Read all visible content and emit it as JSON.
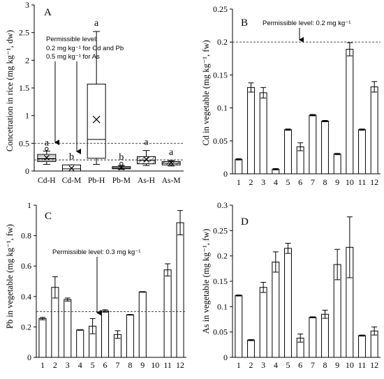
{
  "chart_data": [
    {
      "type": "box",
      "panel_label": "A",
      "ylabel": "Concetration in rice (mg kg⁻¹, dw)",
      "ylim": [
        0,
        3
      ],
      "yticks": [
        "0",
        "0.5",
        "1",
        "1.5",
        "2",
        "2.5",
        "3"
      ],
      "categories": [
        "Cd-H",
        "Cd-M",
        "Pb-H",
        "Pb-M",
        "As-H",
        "As-M"
      ],
      "boxes": [
        {
          "min": 0.12,
          "q1": 0.17,
          "median": 0.22,
          "q3": 0.3,
          "max": 0.36,
          "mean": 0.24,
          "outliers": [
            0.4
          ],
          "letter": "a",
          "fill": "lines"
        },
        {
          "min": 0.0,
          "q1": 0.0,
          "median": 0.04,
          "q3": 0.11,
          "max": 0.11,
          "mean": 0.05,
          "outliers": [],
          "letter": "b",
          "fill": "none"
        },
        {
          "min": 0.12,
          "q1": 0.23,
          "median": 0.57,
          "q3": 1.57,
          "max": 2.52,
          "mean": 0.93,
          "outliers": [],
          "letter": "a",
          "fill": "none"
        },
        {
          "min": 0.03,
          "q1": 0.04,
          "median": 0.06,
          "q3": 0.08,
          "max": 0.1,
          "mean": 0.06,
          "outliers": [
            0.13
          ],
          "letter": "b",
          "fill": "lines"
        },
        {
          "min": 0.1,
          "q1": 0.13,
          "median": 0.19,
          "q3": 0.26,
          "max": 0.37,
          "mean": 0.21,
          "outliers": [],
          "letter": "a",
          "fill": "diag"
        },
        {
          "min": 0.09,
          "q1": 0.11,
          "median": 0.14,
          "q3": 0.17,
          "max": 0.19,
          "mean": 0.15,
          "outliers": [],
          "letter": "a",
          "fill": "diag"
        }
      ],
      "permissible_lines": [
        0.5,
        0.2
      ],
      "annotation": {
        "title": "Permissible level:",
        "line1": "0.2 mg kg⁻¹  for Cd and Pb",
        "line2": "0.5 mg kg⁻¹ for As"
      }
    },
    {
      "type": "bar",
      "panel_label": "B",
      "ylabel": "Cd in vegetable (mg kg⁻¹, fw)",
      "ylim": [
        0,
        0.25
      ],
      "yticks": [
        "0",
        "0.05",
        "0.1",
        "0.15",
        "0.2",
        "0.25"
      ],
      "categories": [
        "1",
        "2",
        "3",
        "4",
        "5",
        "6",
        "7",
        "8",
        "9",
        "10",
        "11",
        "12"
      ],
      "values": [
        0.022,
        0.131,
        0.123,
        0.007,
        0.067,
        0.041,
        0.089,
        0.08,
        0.03,
        0.189,
        0.067,
        0.132
      ],
      "errors": [
        0.001,
        0.007,
        0.008,
        0.001,
        0.001,
        0.006,
        0.001,
        0.001,
        0.001,
        0.01,
        0.001,
        0.008
      ],
      "permissible_line": 0.2,
      "annotation": "Permissible level: 0.2 mg kg⁻¹"
    },
    {
      "type": "bar",
      "panel_label": "C",
      "ylabel": "Pb in vegetable (mg kg⁻¹, fw)",
      "ylim": [
        0,
        1
      ],
      "yticks": [
        "0",
        "0.2",
        "0.4",
        "0.6",
        "0.8",
        "1"
      ],
      "categories": [
        "1",
        "2",
        "3",
        "4",
        "5",
        "6",
        "7",
        "8",
        "9",
        "10",
        "11",
        "12"
      ],
      "values": [
        0.255,
        0.46,
        0.38,
        0.18,
        0.205,
        0.305,
        0.15,
        0.28,
        0.43,
        null,
        0.575,
        0.885
      ],
      "errors": [
        0.008,
        0.07,
        0.01,
        0.002,
        0.05,
        0.008,
        0.025,
        0.002,
        0.002,
        null,
        0.04,
        0.08
      ],
      "permissible_line": 0.3,
      "annotation": "Permissible level: 0.3 mg kg⁻¹"
    },
    {
      "type": "bar",
      "panel_label": "D",
      "ylabel": "As in vegetable (mg kg⁻¹, fw)",
      "ylim": [
        0,
        0.3
      ],
      "yticks": [
        "0",
        "0.05",
        "0.1",
        "0.15",
        "0.2",
        "0.25",
        "0.3"
      ],
      "categories": [
        "1",
        "2",
        "3",
        "4",
        "5",
        "6",
        "7",
        "8",
        "9",
        "10",
        "11",
        "12"
      ],
      "values": [
        0.122,
        0.034,
        0.138,
        0.188,
        0.215,
        0.038,
        0.079,
        0.085,
        0.183,
        0.217,
        0.043,
        0.052
      ],
      "errors": [
        0.001,
        0.001,
        0.01,
        0.02,
        0.01,
        0.008,
        0.001,
        0.008,
        0.03,
        0.06,
        0.001,
        0.008
      ],
      "permissible_line": null
    }
  ]
}
